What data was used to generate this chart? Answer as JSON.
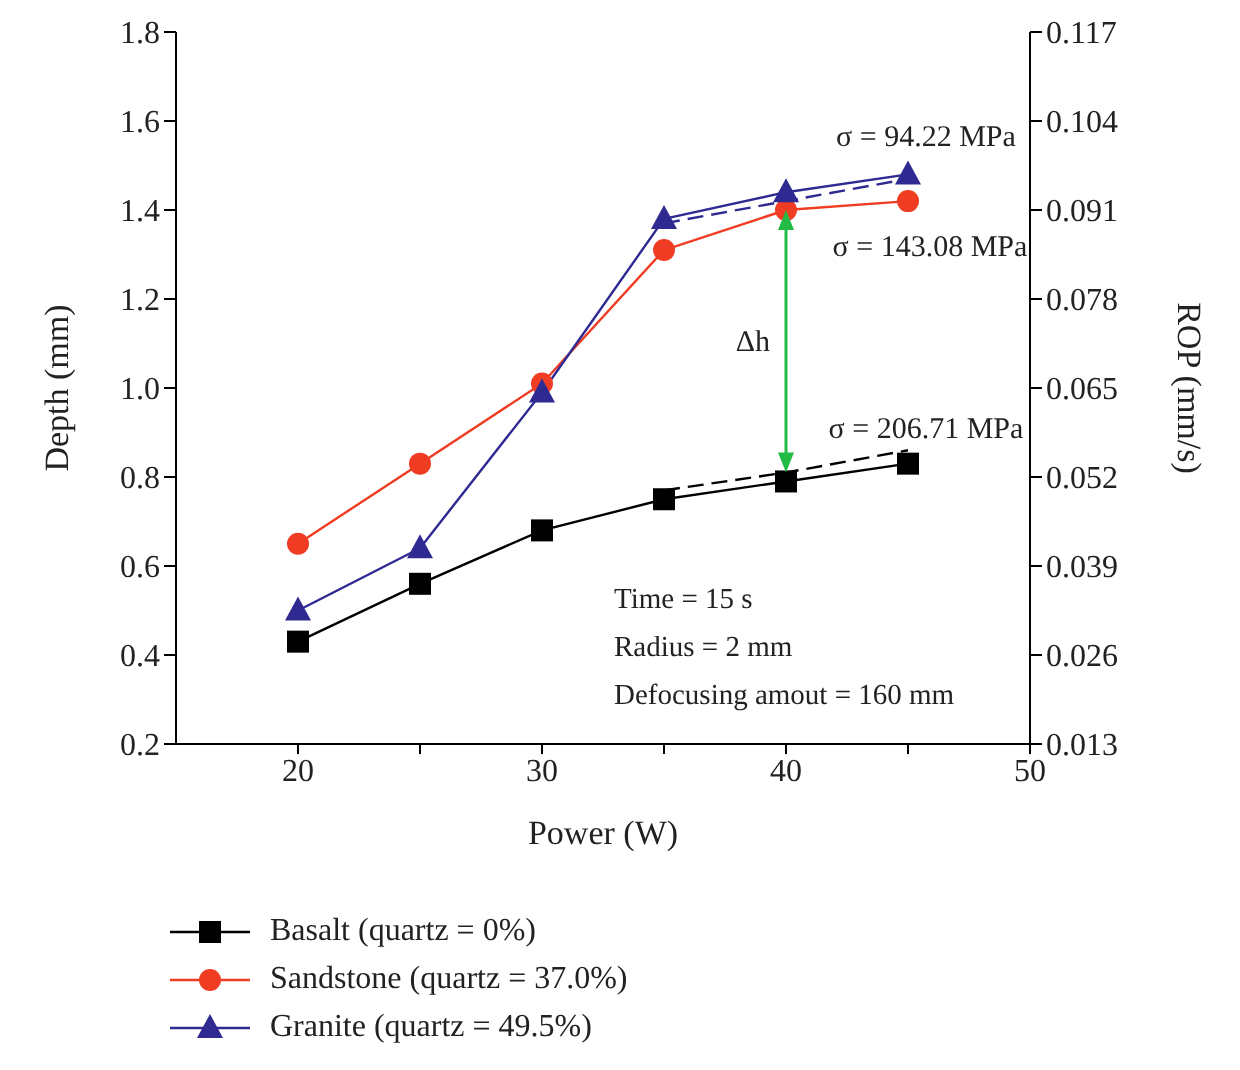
{
  "chart_data": {
    "type": "line",
    "xlabel": "Power (W)",
    "ylabel": "Depth (mm)",
    "y2label": "ROP (mm/s)",
    "x": [
      20,
      25,
      30,
      35,
      40,
      45
    ],
    "xlim": [
      15,
      50
    ],
    "xticks": [
      {
        "value": 25,
        "label": null
      },
      {
        "value": 35,
        "label": null
      },
      {
        "value": 45,
        "label": null
      },
      20,
      30,
      40,
      50
    ],
    "ylim": [
      0.2,
      1.8
    ],
    "yticks": [
      0.2,
      0.4,
      0.6,
      0.8,
      {
        "value": 1,
        "label": "1.0"
      },
      1.2,
      1.4,
      1.6,
      1.8
    ],
    "y2lim": [
      0.013,
      0.117
    ],
    "y2ticks": [
      0.013,
      0.026,
      0.039,
      0.052,
      0.065,
      0.078,
      0.091,
      0.104,
      0.117
    ],
    "grid": false,
    "legend": "bottom",
    "series": [
      {
        "name": "Basalt (quartz = 0%)",
        "color": "#000000",
        "marker": "square",
        "values": [
          0.43,
          0.56,
          0.68,
          0.75,
          0.79,
          0.83
        ]
      },
      {
        "name": "Sandstone (quartz = 37.0%)",
        "color": "#f03c22",
        "marker": "circle",
        "values": [
          0.65,
          0.83,
          1.01,
          1.31,
          1.4,
          1.42
        ]
      },
      {
        "name": "Granite (quartz = 49.5%)",
        "color": "#2f2a92",
        "marker": "triangle",
        "values": [
          0.5,
          0.64,
          0.99,
          1.38,
          1.44,
          1.48
        ]
      },
      {
        "type": "line",
        "color": "#000000",
        "marker": "none",
        "line_style": "dashed",
        "values": [
          null,
          null,
          null,
          0.77,
          0.81,
          0.86
        ]
      },
      {
        "type": "line",
        "color": "#2f2a92",
        "marker": "none",
        "line_style": "dashed",
        "values": [
          null,
          null,
          null,
          1.37,
          1.42,
          1.47
        ]
      }
    ],
    "annotations": [
      "σ = 94.22 MPa",
      "σ = 143.08 MPa",
      "σ = 206.71 MPa",
      "Δh",
      "Time = 15 s",
      "Radius = 2 mm",
      "Defocusing amout = 160 mm"
    ]
  }
}
